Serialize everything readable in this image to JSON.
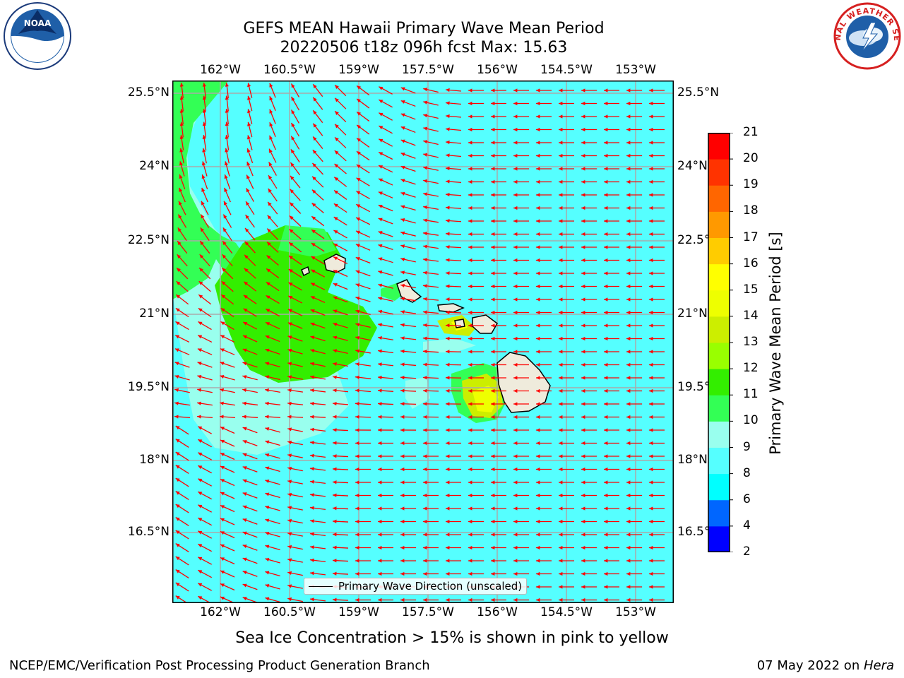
{
  "title": {
    "line1": "GEFS MEAN Hawaii Primary Wave Mean Period",
    "line2": "20220506 t18z 096h fcst   Max: 15.63"
  },
  "map": {
    "lon_labels": [
      "162°W",
      "160.5°W",
      "159°W",
      "157.5°W",
      "156°W",
      "154.5°W",
      "153°W"
    ],
    "lat_labels": [
      "25.5°N",
      "24°N",
      "22.5°N",
      "21°N",
      "19.5°N",
      "18°N",
      "16.5°N"
    ],
    "legend_label": "Primary Wave Direction (unscaled)",
    "background_color": "#55ffff",
    "arrow_color": "#ff0000",
    "land_color": "#efebdc"
  },
  "colorbar": {
    "label": "Primary Wave Mean Period [s]",
    "ticks": [
      "2",
      "4",
      "6",
      "8",
      "9",
      "10",
      "11",
      "12",
      "13",
      "14",
      "15",
      "16",
      "17",
      "18",
      "19",
      "20",
      "21"
    ],
    "colors": [
      "#0000ff",
      "#0066ff",
      "#00ffff",
      "#55ffff",
      "#99ffee",
      "#33ff55",
      "#33ee00",
      "#99ff00",
      "#ccee00",
      "#eeff00",
      "#ffff00",
      "#ffcc00",
      "#ff9900",
      "#ff6600",
      "#ff3300",
      "#ff0000"
    ]
  },
  "note": "Sea Ice Concentration > 15% is shown in pink to yellow",
  "footer": {
    "left": "NCEP/EMC/Verification Post Processing Product Generation Branch",
    "right_date": "07 May 2022 on ",
    "right_host": "Hera"
  },
  "logos": {
    "noaa_text": "NOAA",
    "nws_text": "NATIONAL WEATHER SERVICE"
  }
}
